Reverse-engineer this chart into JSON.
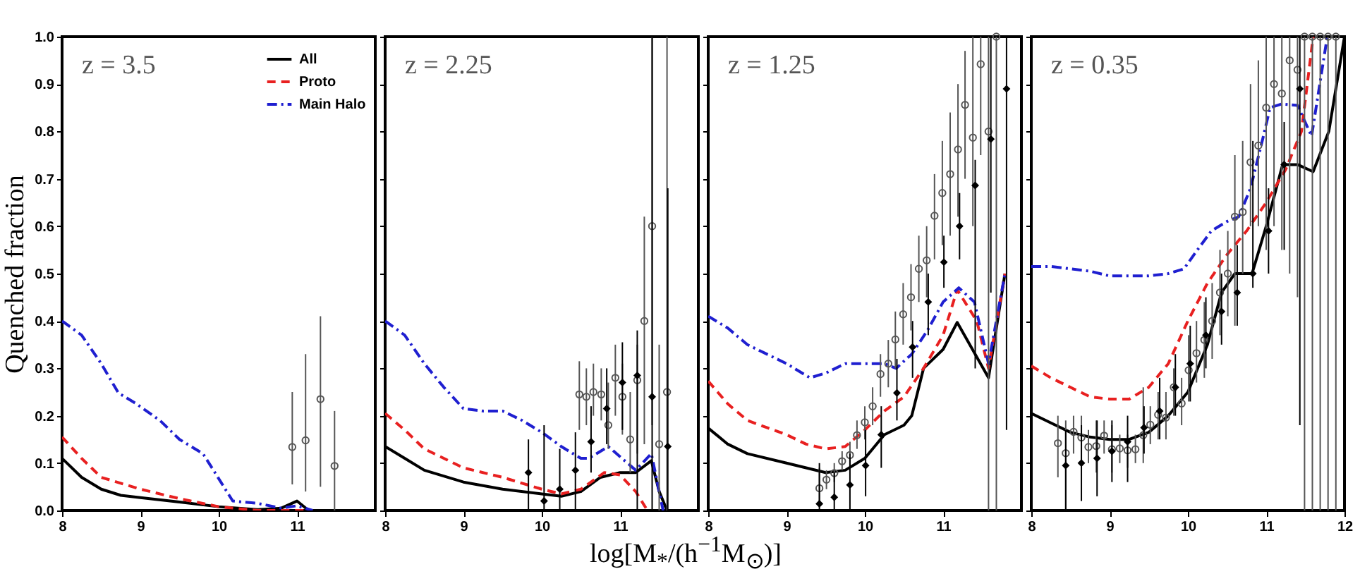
{
  "chart_data": [
    {
      "type": "line",
      "ylabel": "Quenched fraction",
      "annotations": [
        "z = 3.5"
      ],
      "legend": "top right",
      "grid": false,
      "xlim": [
        8,
        12
      ],
      "xticks": [
        8,
        9,
        10,
        11
      ],
      "ylim": [
        0,
        1
      ],
      "yticks": [
        {
          "value": 0,
          "label": "0.0"
        },
        0.1,
        0.2,
        0.3,
        0.4,
        0.5,
        0.6,
        0.7,
        0.8,
        0.9,
        {
          "value": 1,
          "label": "1.0"
        }
      ],
      "series": [
        {
          "name": "All",
          "type": "line",
          "color": "#000000",
          "line_style": "solid",
          "x": [
            8,
            8.25,
            8.5,
            8.75,
            9,
            9.5,
            10,
            10.5,
            10.8,
            11,
            11.15
          ],
          "values": [
            0.11,
            0.07,
            0.045,
            0.032,
            0.027,
            0.018,
            0.008,
            0.002,
            0.005,
            0.02,
            0
          ]
        },
        {
          "name": "Proto",
          "type": "line",
          "color": "#e82020",
          "line_style": "dashed",
          "x": [
            8,
            8.25,
            8.5,
            9,
            9.5,
            10,
            10.5,
            11,
            11.2
          ],
          "values": [
            0.155,
            0.11,
            0.07,
            0.045,
            0.025,
            0.008,
            0,
            0,
            0
          ]
        },
        {
          "name": "Main Halo",
          "type": "line",
          "color": "#1f1fd0",
          "line_style": "dashdot",
          "x": [
            8,
            8.25,
            8.5,
            8.72,
            8.95,
            9.25,
            9.5,
            9.8,
            10.18,
            10.5,
            10.8,
            11,
            11.2
          ],
          "values": [
            0.4,
            0.37,
            0.31,
            0.248,
            0.225,
            0.19,
            0.15,
            0.12,
            0.02,
            0.015,
            0.005,
            0.01,
            0
          ]
        },
        {
          "type": "scatter",
          "marker": "circle",
          "color": "#555555",
          "x": [
            10.94,
            11.11,
            11.3,
            11.48
          ],
          "values": [
            0.134,
            0.148,
            0.235,
            0.094
          ],
          "errors": [
            [
              0.055,
              0.25
            ],
            [
              0.04,
              0.33
            ],
            [
              0.05,
              0.41
            ],
            [
              0,
              0.21
            ]
          ]
        }
      ]
    },
    {
      "type": "line",
      "xlabel": "log[M$_{*}$/(h$^{−1}$M$_{⊙}$)]",
      "annotations": [
        "z = 2.25"
      ],
      "tick_labels": "x",
      "grid": false,
      "xlim": [
        8,
        12
      ],
      "xticks": [
        8,
        9,
        10,
        11
      ],
      "ylim": [
        0,
        1
      ],
      "yticks": [
        0,
        0.1,
        0.2,
        0.3,
        0.4,
        0.5,
        0.6,
        0.7,
        0.8,
        0.9,
        1
      ],
      "series": [
        {
          "type": "line",
          "color": "#000000",
          "line_style": "solid",
          "x": [
            8,
            8.25,
            8.5,
            9,
            9.5,
            10,
            10.25,
            10.5,
            10.75,
            11,
            11.2,
            11.4,
            11.5,
            11.6
          ],
          "values": [
            0.135,
            0.11,
            0.085,
            0.06,
            0.045,
            0.035,
            0.03,
            0.04,
            0.07,
            0.08,
            0.08,
            0.105,
            0.04,
            0
          ]
        },
        {
          "type": "line",
          "color": "#e82020",
          "line_style": "dashed",
          "x": [
            8,
            8.25,
            8.5,
            9,
            9.5,
            10,
            10.25,
            10.5,
            10.8,
            11,
            11.2,
            11.35
          ],
          "values": [
            0.205,
            0.17,
            0.13,
            0.09,
            0.07,
            0.045,
            0.035,
            0.045,
            0.08,
            0.075,
            0.04,
            0
          ]
        },
        {
          "type": "line",
          "color": "#1f1fd0",
          "line_style": "dashdot",
          "x": [
            8,
            8.25,
            8.5,
            8.75,
            9,
            9.25,
            9.5,
            9.75,
            10,
            10.25,
            10.5,
            10.6,
            10.85,
            11.2,
            11.4,
            11.55
          ],
          "values": [
            0.4,
            0.37,
            0.31,
            0.26,
            0.215,
            0.21,
            0.21,
            0.19,
            0.165,
            0.135,
            0.11,
            0.11,
            0.135,
            0.085,
            0.12,
            0
          ]
        },
        {
          "type": "scatter",
          "marker": "circle",
          "color": "#555555",
          "x": [
            10.48,
            10.57,
            10.66,
            10.76,
            10.85,
            10.94,
            11.03,
            11.13,
            11.22,
            11.31,
            11.41,
            11.5,
            11.6
          ],
          "values": [
            0.245,
            0.24,
            0.25,
            0.245,
            0.18,
            0.28,
            0.24,
            0.15,
            0.275,
            0.4,
            0.6,
            0.14,
            0.25
          ],
          "errors": [
            [
              0.17,
              0.315
            ],
            [
              0.18,
              0.3
            ],
            [
              0.2,
              0.31
            ],
            [
              0.19,
              0.3
            ],
            [
              0.13,
              0.27
            ],
            [
              0.2,
              0.35
            ],
            [
              0.16,
              0.31
            ],
            [
              0.08,
              0.25
            ],
            [
              0.12,
              0.35
            ],
            [
              0.14,
              0.62
            ],
            [
              0.18,
              1
            ],
            [
              0,
              0.35
            ],
            [
              0,
              1
            ]
          ]
        },
        {
          "type": "scatter",
          "marker": "diamond",
          "color": "#000000",
          "x": [
            9.83,
            10.03,
            10.23,
            10.43,
            10.63,
            10.83,
            11.03,
            11.22,
            11.41,
            11.61
          ],
          "values": [
            0.08,
            0.02,
            0.045,
            0.085,
            0.145,
            0.215,
            0.27,
            0.285,
            0.24,
            0.135
          ],
          "errors": [
            [
              0,
              0.15
            ],
            [
              0,
              0.18
            ],
            [
              0,
              0.13
            ],
            [
              0,
              0.165
            ],
            [
              0.08,
              0.22
            ],
            [
              0.14,
              0.3
            ],
            [
              0.17,
              0.355
            ],
            [
              0,
              0.38
            ],
            [
              0,
              1
            ],
            [
              0,
              0.68
            ]
          ]
        }
      ]
    },
    {
      "type": "line",
      "annotations": [
        "z = 1.25"
      ],
      "tick_labels": "x",
      "grid": false,
      "xlim": [
        8,
        12
      ],
      "xticks": [
        8,
        9,
        10,
        11
      ],
      "ylim": [
        0,
        1
      ],
      "yticks": [
        0,
        0.1,
        0.2,
        0.3,
        0.4,
        0.5,
        0.6,
        0.7,
        0.8,
        0.9,
        1
      ],
      "series": [
        {
          "type": "line",
          "color": "#000000",
          "line_style": "solid",
          "x": [
            8,
            8.25,
            8.5,
            9,
            9.25,
            9.5,
            9.75,
            10,
            10.25,
            10.5,
            10.6,
            10.75,
            11,
            11.18,
            11.58,
            11.79
          ],
          "values": [
            0.174,
            0.14,
            0.12,
            0.1,
            0.09,
            0.08,
            0.085,
            0.11,
            0.16,
            0.18,
            0.2,
            0.3,
            0.34,
            0.397,
            0.28,
            0.5
          ]
        },
        {
          "type": "line",
          "color": "#e82020",
          "line_style": "dashed",
          "x": [
            8,
            8.25,
            8.5,
            9,
            9.25,
            9.5,
            9.75,
            10,
            10.25,
            10.5,
            10.75,
            11,
            11.18,
            11.43,
            11.58,
            11.79
          ],
          "values": [
            0.273,
            0.225,
            0.19,
            0.16,
            0.14,
            0.13,
            0.135,
            0.17,
            0.21,
            0.24,
            0.3,
            0.37,
            0.466,
            0.4,
            0.3,
            0.5
          ]
        },
        {
          "type": "line",
          "color": "#1f1fd0",
          "line_style": "dashdot",
          "x": [
            8,
            8.25,
            8.5,
            9,
            9.3,
            9.5,
            9.75,
            10,
            10.25,
            10.4,
            10.6,
            10.8,
            11,
            11.2,
            11.4,
            11.58,
            11.79
          ],
          "values": [
            0.41,
            0.385,
            0.35,
            0.31,
            0.28,
            0.29,
            0.31,
            0.31,
            0.31,
            0.3,
            0.33,
            0.38,
            0.44,
            0.47,
            0.44,
            0.31,
            0.5
          ]
        },
        {
          "type": "scatter",
          "marker": "circle",
          "color": "#555555",
          "x": [
            9.42,
            9.51,
            9.61,
            9.71,
            9.81,
            9.9,
            10,
            10.1,
            10.2,
            10.3,
            10.39,
            10.49,
            10.59,
            10.69,
            10.79,
            10.89,
            10.99,
            11.09,
            11.19,
            11.28,
            11.38,
            11.48,
            11.58,
            11.68
          ],
          "values": [
            0.047,
            0.065,
            0.079,
            0.104,
            0.117,
            0.159,
            0.186,
            0.22,
            0.288,
            0.31,
            0.361,
            0.414,
            0.45,
            0.51,
            0.528,
            0.622,
            0.67,
            0.71,
            0.762,
            0.856,
            0.787,
            0.942,
            0.8,
            1
          ],
          "errors": [
            [
              0.01,
              0.09
            ],
            [
              0.045,
              0.085
            ],
            [
              0.06,
              0.1
            ],
            [
              0.085,
              0.125
            ],
            [
              0.09,
              0.145
            ],
            [
              0.13,
              0.19
            ],
            [
              0.15,
              0.22
            ],
            [
              0.18,
              0.26
            ],
            [
              0.24,
              0.33
            ],
            [
              0.26,
              0.36
            ],
            [
              0.3,
              0.42
            ],
            [
              0.35,
              0.48
            ],
            [
              0.38,
              0.52
            ],
            [
              0.44,
              0.58
            ],
            [
              0.45,
              0.6
            ],
            [
              0.53,
              0.71
            ],
            [
              0.56,
              0.78
            ],
            [
              0.58,
              0.84
            ],
            [
              0.62,
              0.9
            ],
            [
              0.7,
              0.97
            ],
            [
              0.6,
              1
            ],
            [
              0.75,
              1
            ],
            [
              0,
              1
            ],
            [
              0,
              1
            ]
          ]
        },
        {
          "type": "scatter",
          "marker": "diamond",
          "color": "#000000",
          "x": [
            9.42,
            9.61,
            9.81,
            10.01,
            10.21,
            10.41,
            10.61,
            10.81,
            11.01,
            11.21,
            11.41,
            11.61,
            11.81
          ],
          "values": [
            0.014,
            0.028,
            0.054,
            0.095,
            0.16,
            0.248,
            0.345,
            0.44,
            0.524,
            0.6,
            0.686,
            0.784,
            0.89
          ],
          "errors": [
            [
              0,
              0.1
            ],
            [
              0,
              0.08
            ],
            [
              0,
              0.12
            ],
            [
              0.03,
              0.17
            ],
            [
              0.09,
              0.22
            ],
            [
              0.19,
              0.32
            ],
            [
              0.28,
              0.4
            ],
            [
              0.37,
              0.5
            ],
            [
              0.47,
              0.58
            ],
            [
              0.53,
              0.67
            ],
            [
              0.3,
              0.74
            ],
            [
              0.46,
              1
            ],
            [
              0.17,
              1
            ]
          ]
        }
      ]
    },
    {
      "type": "line",
      "annotations": [
        "z = 0.35"
      ],
      "tick_labels": "x",
      "grid": false,
      "xlim": [
        8,
        12
      ],
      "xticks": [
        8,
        9,
        10,
        11,
        12
      ],
      "ylim": [
        0,
        1
      ],
      "yticks": [
        0,
        0.1,
        0.2,
        0.3,
        0.4,
        0.5,
        0.6,
        0.7,
        0.8,
        0.9,
        1
      ],
      "series": [
        {
          "type": "line",
          "color": "#000000",
          "line_style": "solid",
          "x": [
            8,
            8.25,
            8.5,
            8.75,
            9,
            9.25,
            9.5,
            9.75,
            10,
            10.25,
            10.43,
            10.6,
            10.82,
            11,
            11.21,
            11.4,
            11.6,
            11.8,
            12
          ],
          "values": [
            0.205,
            0.185,
            0.165,
            0.155,
            0.15,
            0.15,
            0.165,
            0.2,
            0.25,
            0.35,
            0.46,
            0.5,
            0.5,
            0.6,
            0.73,
            0.73,
            0.715,
            0.8,
            1
          ]
        },
        {
          "type": "line",
          "color": "#e82020",
          "line_style": "dashed",
          "x": [
            8,
            8.25,
            8.5,
            8.75,
            9,
            9.25,
            9.5,
            9.75,
            10,
            10.25,
            10.5,
            10.75,
            11,
            11.25,
            11.45,
            11.6
          ],
          "values": [
            0.305,
            0.28,
            0.26,
            0.24,
            0.235,
            0.235,
            0.26,
            0.31,
            0.4,
            0.48,
            0.54,
            0.59,
            0.65,
            0.72,
            0.8,
            1
          ]
        },
        {
          "type": "line",
          "color": "#1f1fd0",
          "line_style": "dashdot",
          "x": [
            8,
            8.25,
            8.5,
            8.75,
            9,
            9.25,
            9.5,
            9.75,
            9.95,
            10.1,
            10.3,
            10.5,
            10.65,
            10.8,
            10.95,
            11.05,
            11.2,
            11.4,
            11.58,
            11.78
          ],
          "values": [
            0.515,
            0.515,
            0.51,
            0.505,
            0.495,
            0.495,
            0.495,
            0.5,
            0.51,
            0.545,
            0.59,
            0.61,
            0.62,
            0.68,
            0.78,
            0.85,
            0.858,
            0.855,
            0.79,
            1
          ]
        },
        {
          "type": "scatter",
          "marker": "circle",
          "color": "#555555",
          "x": [
            8.34,
            8.44,
            8.54,
            8.64,
            8.73,
            8.83,
            8.93,
            9.03,
            9.13,
            9.23,
            9.33,
            9.43,
            9.52,
            9.62,
            9.72,
            9.82,
            9.92,
            10.01,
            10.11,
            10.21,
            10.31,
            10.41,
            10.51,
            10.6,
            10.7,
            10.8,
            10.9,
            11,
            11.1,
            11.2,
            11.3,
            11.4,
            11.49,
            11.59,
            11.69,
            11.79,
            11.89
          ],
          "values": [
            0.142,
            0.121,
            0.166,
            0.154,
            0.134,
            0.136,
            0.158,
            0.129,
            0.131,
            0.127,
            0.129,
            0.159,
            0.181,
            0.202,
            0.196,
            0.26,
            0.226,
            0.296,
            0.332,
            0.36,
            0.4,
            0.46,
            0.5,
            0.62,
            0.63,
            0.735,
            0.77,
            0.85,
            0.9,
            0.88,
            0.95,
            0.93,
            1,
            1,
            1,
            1,
            1
          ],
          "errors": [
            [
              0.07,
              0.2
            ],
            [
              0,
              0.19
            ],
            [
              0.12,
              0.2
            ],
            [
              0.1,
              0.2
            ],
            [
              0.1,
              0.17
            ],
            [
              0.08,
              0.19
            ],
            [
              0.12,
              0.19
            ],
            [
              0.08,
              0.18
            ],
            [
              0.1,
              0.16
            ],
            [
              0.09,
              0.16
            ],
            [
              0.1,
              0.16
            ],
            [
              0.1,
              0.26
            ],
            [
              0.14,
              0.22
            ],
            [
              0.15,
              0.25
            ],
            [
              0.15,
              0.25
            ],
            [
              0.2,
              0.3
            ],
            [
              0.18,
              0.28
            ],
            [
              0.23,
              0.37
            ],
            [
              0.27,
              0.4
            ],
            [
              0.28,
              0.44
            ],
            [
              0.32,
              0.48
            ],
            [
              0.37,
              0.55
            ],
            [
              0.41,
              0.59
            ],
            [
              0.39,
              0.75
            ],
            [
              0.5,
              0.78
            ],
            [
              0.6,
              0.9
            ],
            [
              0.6,
              0.95
            ],
            [
              0.55,
              1
            ],
            [
              0.6,
              1
            ],
            [
              0.55,
              1
            ],
            [
              0.5,
              1
            ],
            [
              0.45,
              1
            ],
            [
              0,
              1
            ],
            [
              0,
              1
            ],
            [
              0,
              1
            ],
            [
              0,
              1
            ],
            [
              0,
              1
            ]
          ]
        },
        {
          "type": "scatter",
          "marker": "diamond",
          "color": "#000000",
          "x": [
            8.44,
            8.64,
            8.84,
            9.03,
            9.23,
            9.44,
            9.64,
            9.84,
            10.03,
            10.23,
            10.43,
            10.63,
            10.83,
            11.03,
            11.23,
            11.43
          ],
          "values": [
            0.095,
            0.1,
            0.11,
            0.125,
            0.145,
            0.175,
            0.21,
            0.26,
            0.31,
            0.37,
            0.42,
            0.46,
            0.5,
            0.59,
            0.73,
            0.89
          ],
          "errors": [
            [
              0,
              0.17
            ],
            [
              0.02,
              0.18
            ],
            [
              0.03,
              0.19
            ],
            [
              0.06,
              0.19
            ],
            [
              0.06,
              0.2
            ],
            [
              0.12,
              0.22
            ],
            [
              0.15,
              0.28
            ],
            [
              0.2,
              0.33
            ],
            [
              0.23,
              0.39
            ],
            [
              0.3,
              0.45
            ],
            [
              0.35,
              0.5
            ],
            [
              0.39,
              0.56
            ],
            [
              0.47,
              0.78
            ],
            [
              0.5,
              0.68
            ],
            [
              0.55,
              0.82
            ],
            [
              0.18,
              1
            ]
          ]
        }
      ]
    }
  ]
}
